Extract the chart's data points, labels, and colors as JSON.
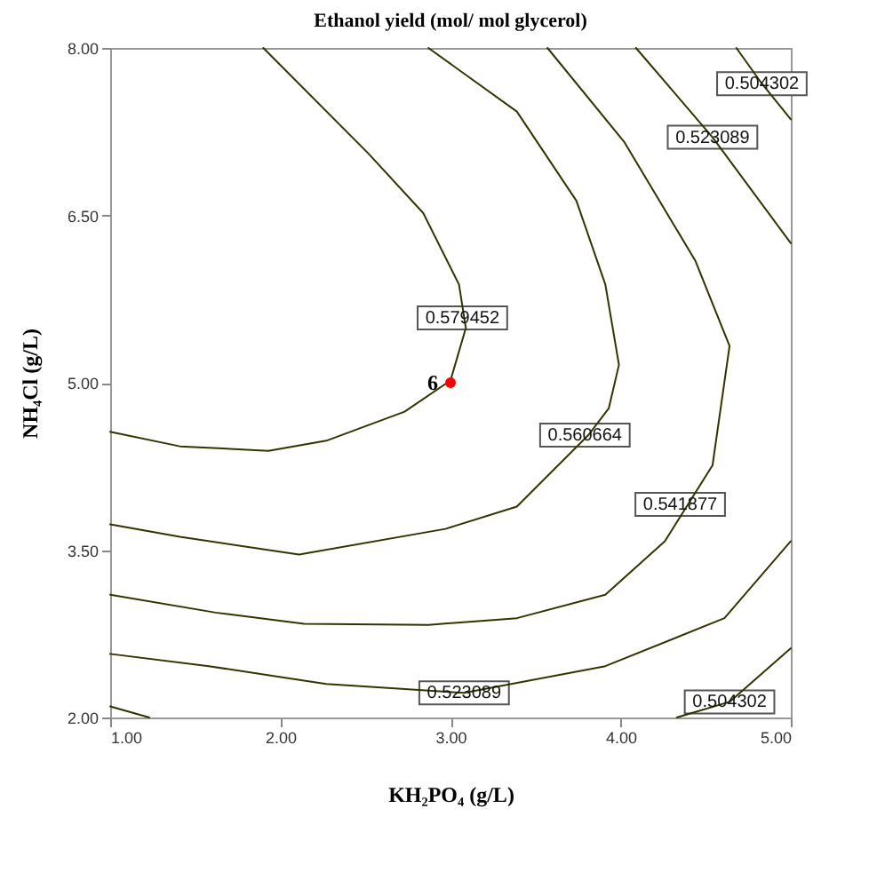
{
  "chart_data": {
    "type": "line",
    "title": "Ethanol yield (mol/ mol glycerol)",
    "xlabel": "KH₂PO₄ (g/L)",
    "ylabel": "NH₄Cl (g/L)",
    "xlim": [
      1,
      5
    ],
    "ylim": [
      2,
      8
    ],
    "xticks": [
      {
        "value": 1,
        "label": "1.00"
      },
      {
        "value": 2,
        "label": "2.00"
      },
      {
        "value": 3,
        "label": "3.00"
      },
      {
        "value": 4,
        "label": "4.00"
      },
      {
        "value": 5,
        "label": "5.00"
      }
    ],
    "yticks": [
      {
        "value": 2,
        "label": "2.00"
      },
      {
        "value": 3.5,
        "label": "3.50"
      },
      {
        "value": 5,
        "label": "5.00"
      },
      {
        "value": 6.5,
        "label": "6.50"
      },
      {
        "value": 8,
        "label": "8.00"
      }
    ],
    "grid": false,
    "marker": "none",
    "line_style": "solid",
    "series": [
      {
        "color": "#333300",
        "x": [
          1.9,
          2.52,
          2.84,
          3.05,
          3.09,
          3.0,
          2.73,
          2.27,
          1.93,
          1.41,
          1.0
        ],
        "values": [
          8.0,
          7.05,
          6.52,
          5.88,
          5.49,
          5.02,
          4.74,
          4.48,
          4.39,
          4.43,
          4.56
        ]
      },
      {
        "color": "#333300",
        "x": [
          2.87,
          3.39,
          3.74,
          3.91,
          3.99,
          3.93,
          3.81,
          3.39,
          2.97,
          2.11,
          1.41,
          1.0
        ],
        "values": [
          8.0,
          7.43,
          6.63,
          5.88,
          5.16,
          4.77,
          4.53,
          3.89,
          3.69,
          3.46,
          3.62,
          3.73
        ]
      },
      {
        "color": "#333300",
        "x": [
          3.57,
          4.02,
          4.44,
          4.64,
          4.54,
          4.26,
          3.91,
          3.39,
          2.87,
          2.14,
          1.62,
          1.0
        ],
        "values": [
          8.0,
          7.16,
          6.09,
          5.33,
          4.26,
          3.58,
          3.1,
          2.89,
          2.83,
          2.84,
          2.94,
          3.1
        ]
      },
      {
        "color": "#333300",
        "x": [
          4.09,
          4.54,
          5.0,
          null,
          5.0,
          4.61,
          3.91,
          3.08,
          2.27,
          1.58,
          1.0
        ],
        "values": [
          8.0,
          7.2,
          6.25,
          null,
          3.58,
          2.89,
          2.46,
          2.22,
          2.3,
          2.46,
          2.57
        ]
      },
      {
        "color": "#333300",
        "x": [
          4.68,
          4.83,
          5.0,
          null,
          4.33,
          4.64,
          5.0,
          null,
          1.0,
          1.23
        ],
        "values": [
          8.0,
          7.68,
          7.36,
          null,
          2.0,
          2.14,
          2.62,
          null,
          2.1,
          2.0
        ]
      },
      {
        "type": "scatter",
        "marker": "circle",
        "color": "#ff0000",
        "x": [
          3
        ],
        "values": [
          5
        ]
      }
    ],
    "annotations": [
      {
        "text": "0.504302",
        "x": 4.83,
        "y": 7.68
      },
      {
        "text": "0.523089",
        "x": 4.54,
        "y": 7.2
      },
      {
        "text": "0.579452",
        "x": 3.07,
        "y": 5.58
      },
      {
        "text": "0.560664",
        "x": 3.79,
        "y": 4.53
      },
      {
        "text": "0.541877",
        "x": 4.35,
        "y": 3.91
      },
      {
        "text": "0.523089",
        "x": 3.08,
        "y": 2.22
      },
      {
        "text": "0.504302",
        "x": 4.64,
        "y": 2.14
      },
      {
        "text": "6",
        "x": 3,
        "y": 5
      }
    ]
  }
}
